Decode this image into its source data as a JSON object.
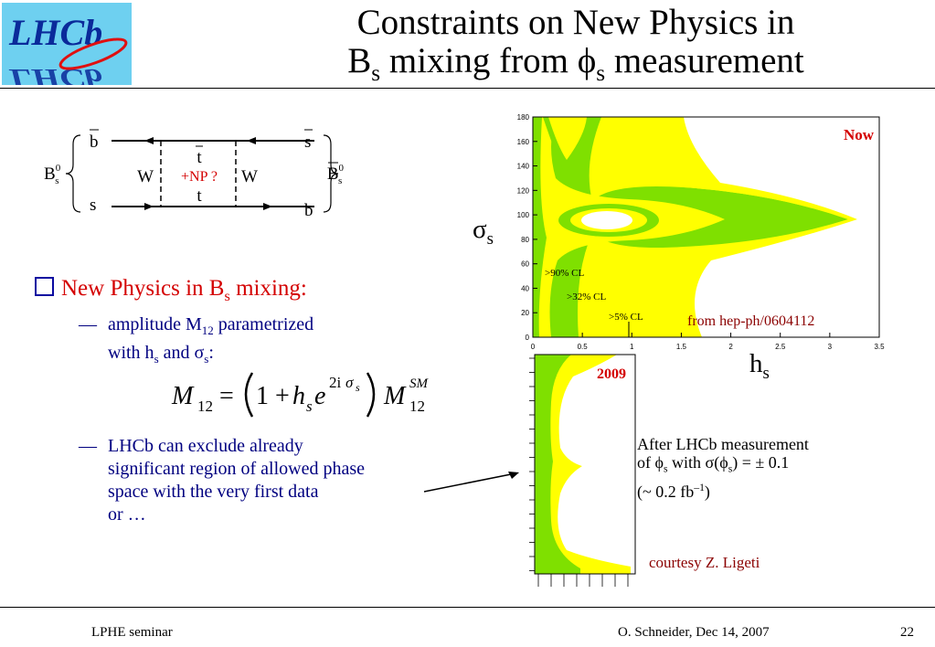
{
  "title": {
    "line1": "Constraints on New Physics in",
    "line2_part1": "B",
    "line2_sub1": "s",
    "line2_part2": " mixing from ",
    "line2_phi": "ϕ",
    "line2_sub2": "s",
    "line2_part3": " measurement"
  },
  "logo": {
    "text": "LHCb"
  },
  "feynman": {
    "b_bar": "b",
    "s_bar": "s",
    "s": "s",
    "b": "b",
    "t_bar": "t",
    "t": "t",
    "w_left": "W",
    "w_right": "W",
    "np": "+NP ?",
    "bs_left": "B",
    "bs_left_sup": "0",
    "bs_left_sub": "s",
    "bs_right": "B",
    "bs_right_sup": "0",
    "bs_right_sub": "s"
  },
  "bullet": {
    "part1": "New Physics in B",
    "sub": "s",
    "part2": " mixing:"
  },
  "sub1": {
    "dash": "—",
    "line1_part1": "amplitude M",
    "line1_sub": "12",
    "line1_part2": " parametrized",
    "line2_part1": "with h",
    "line2_sub1": "s",
    "line2_part2": " and σ",
    "line2_sub2": "s",
    "line2_part3": ":"
  },
  "formula": {
    "m": "M",
    "m_sub": "12",
    "eq": "=",
    "one_plus": "1 +",
    "h": "h",
    "h_sub": "s",
    "e": "e",
    "exp_2i": "2i",
    "exp_sigma": "σ",
    "exp_s": "s",
    "m2": "M",
    "m2_sub": "12",
    "m2_sup": "SM"
  },
  "sub2": {
    "dash": "—",
    "line1": "LHCb can exclude already",
    "line2": "significant region of allowed phase",
    "line3": "space with the very first data",
    "line4": "or …"
  },
  "plot_now": {
    "label": "Now",
    "y_ticks": [
      "180",
      "160",
      "140",
      "120",
      "100",
      "80",
      "60",
      "40",
      "20",
      "0"
    ],
    "x_ticks": [
      "0",
      "0.5",
      "1",
      "1.5",
      "2",
      "2.5",
      "3",
      "3.5"
    ],
    "cl90": ">90% CL",
    "cl32": ">32% CL",
    "cl5": ">5% CL",
    "colors": {
      "white": "#ffffff",
      "green": "#7fe000",
      "yellow": "#ffff00"
    }
  },
  "plot_2009": {
    "label": "2009"
  },
  "axis": {
    "sigma": "σ",
    "sigma_sub": "s",
    "h": "h",
    "h_sub": "s"
  },
  "reference": "from hep-ph/0604112",
  "after": {
    "line1": "After LHCb measurement",
    "line2_part1": "of ϕ",
    "line2_sub1": "s",
    "line2_part2": " with σ(ϕ",
    "line2_sub2": "s",
    "line2_part3": ") = ± 0.1",
    "line3": "(~ 0.2 fb",
    "line3_sup": "–1",
    "line3_end": ")"
  },
  "courtesy": "courtesy Z. Ligeti",
  "footer": {
    "left": "LPHE seminar",
    "mid": "O. Schneider, Dec 14, 2007",
    "page": "22"
  }
}
